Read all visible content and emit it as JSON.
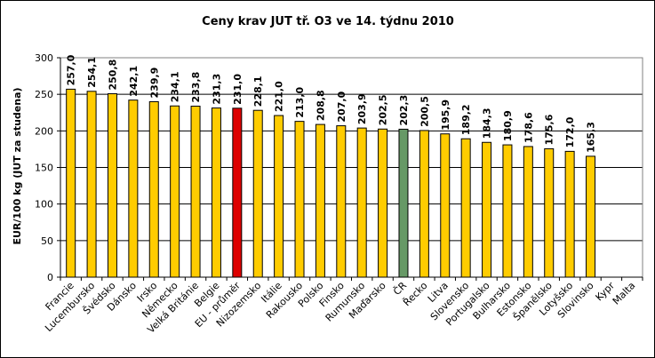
{
  "chart_data": {
    "type": "bar",
    "title": "Ceny krav JUT  tř. O3  ve 14. týdnu 2010",
    "ylabel": "EUR/100 kg (JUT za studena)",
    "xlabel": "",
    "ylim": [
      0,
      300
    ],
    "yticks": [
      0,
      50,
      100,
      150,
      200,
      250,
      300
    ],
    "grid": true,
    "legend": "none",
    "categories": [
      "Francie",
      "Lucembursko",
      "Švédsko",
      "Dánsko",
      "Irsko",
      "Německo",
      "Velká Británie",
      "Belgie",
      "EU - průměr",
      "Nizozemsko",
      "Itálie",
      "Rakousko",
      "Polsko",
      "Finsko",
      "Rumunsko",
      "Maďarsko",
      "ČR",
      "Řecko",
      "Litva",
      "Slovensko",
      "Portugalsko",
      "Bulharsko",
      "Estonsko",
      "Španělsko",
      "Lotyšsko",
      "Slovinsko",
      "Kypr",
      "Malta"
    ],
    "values": [
      257.0,
      254.1,
      250.8,
      242.1,
      239.9,
      234.1,
      233.8,
      231.3,
      231.0,
      228.1,
      221.0,
      213.0,
      208.8,
      207.0,
      203.9,
      202.5,
      202.3,
      200.5,
      195.9,
      189.2,
      184.3,
      180.9,
      178.6,
      175.6,
      172.0,
      165.3,
      null,
      null
    ],
    "value_labels": [
      "257,0",
      "254,1",
      "250,8",
      "242,1",
      "239,9",
      "234,1",
      "233,8",
      "231,3",
      "231,0",
      "228,1",
      "221,0",
      "213,0",
      "208,8",
      "207,0",
      "203,9",
      "202,5",
      "202,3",
      "200,5",
      "195,9",
      "189,2",
      "184,3",
      "180,9",
      "178,6",
      "175,6",
      "172,0",
      "165,3",
      "",
      ""
    ],
    "colors": {
      "default": "#FFCC00",
      "EU - průměr": "#DD0000",
      "ČR": "#669966"
    }
  }
}
